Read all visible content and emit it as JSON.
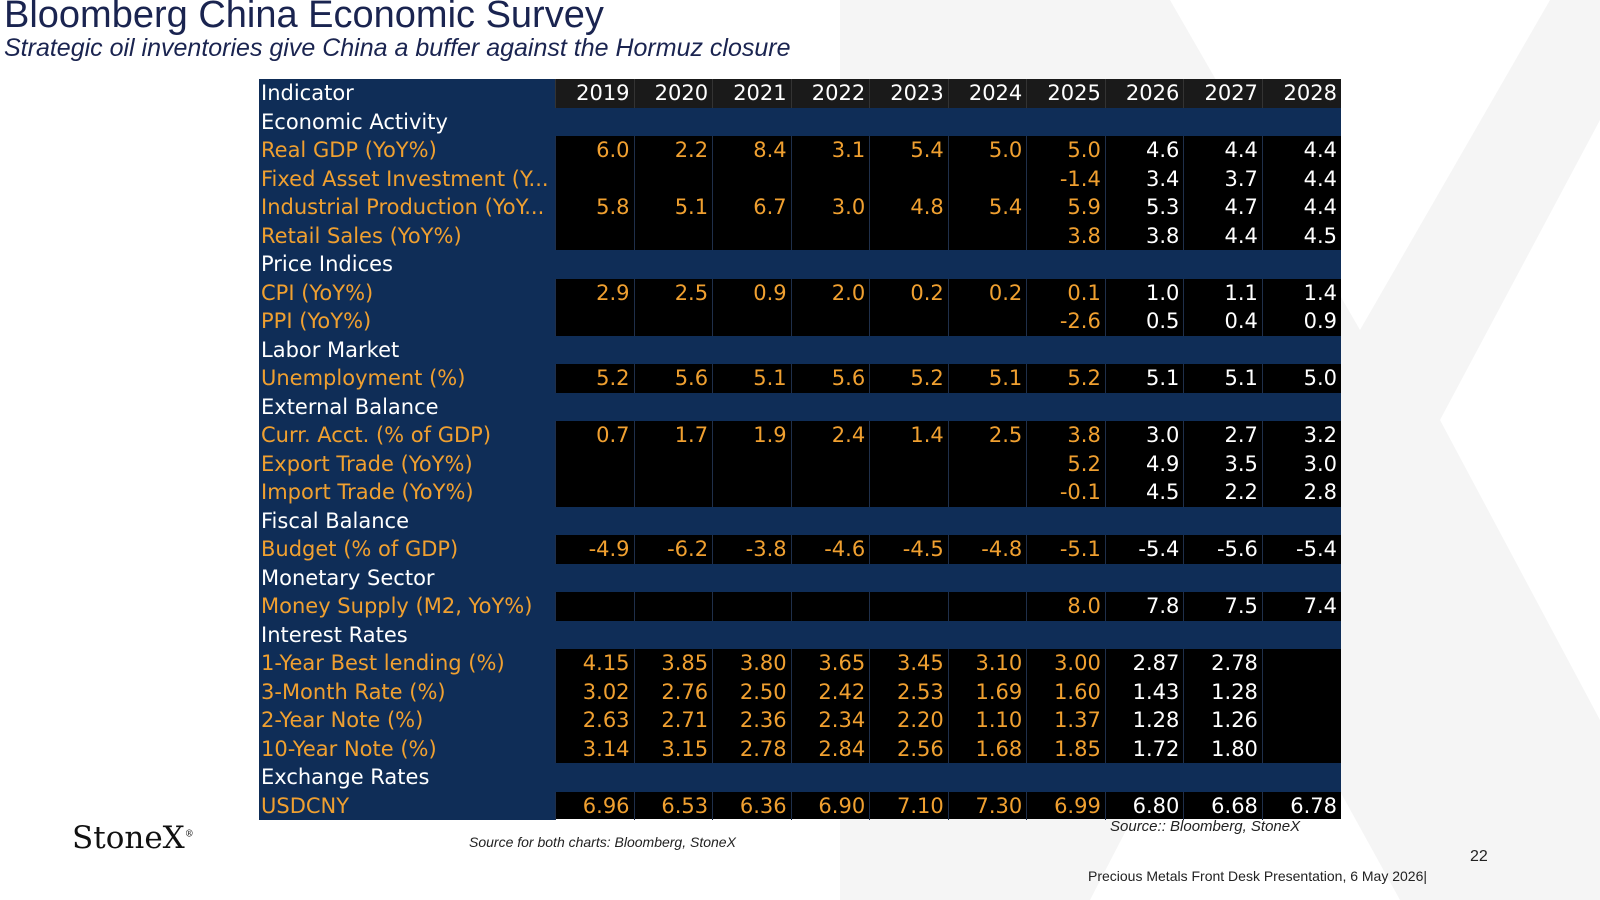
{
  "title": "Bloomberg China Economic Survey",
  "subtitle": "Strategic oil inventories give China a buffer against the Hormuz closure",
  "table": {
    "header_label": "Indicator",
    "years": [
      "2019",
      "2020",
      "2021",
      "2022",
      "2023",
      "2024",
      "2025",
      "2026",
      "2027",
      "2028"
    ],
    "rows": [
      {
        "type": "section",
        "label": "Economic Activity"
      },
      {
        "type": "data",
        "label": "Real GDP (YoY%)",
        "values": [
          "6.0",
          "2.2",
          "8.4",
          "3.1",
          "5.4",
          "5.0",
          "5.0",
          "4.6",
          "4.4",
          "4.4"
        ]
      },
      {
        "type": "data",
        "label": "Fixed Asset Investment (Y...",
        "values": [
          "",
          "",
          "",
          "",
          "",
          "",
          "-1.4",
          "3.4",
          "3.7",
          "4.4"
        ]
      },
      {
        "type": "data",
        "label": "Industrial Production (YoY...",
        "values": [
          "5.8",
          "5.1",
          "6.7",
          "3.0",
          "4.8",
          "5.4",
          "5.9",
          "5.3",
          "4.7",
          "4.4"
        ]
      },
      {
        "type": "data",
        "label": "Retail Sales (YoY%)",
        "values": [
          "",
          "",
          "",
          "",
          "",
          "",
          "3.8",
          "3.8",
          "4.4",
          "4.5"
        ]
      },
      {
        "type": "section",
        "label": "Price Indices"
      },
      {
        "type": "data",
        "label": "CPI (YoY%)",
        "values": [
          "2.9",
          "2.5",
          "0.9",
          "2.0",
          "0.2",
          "0.2",
          "0.1",
          "1.0",
          "1.1",
          "1.4"
        ]
      },
      {
        "type": "data",
        "label": "PPI (YoY%)",
        "values": [
          "",
          "",
          "",
          "",
          "",
          "",
          "-2.6",
          "0.5",
          "0.4",
          "0.9"
        ]
      },
      {
        "type": "section",
        "label": "Labor Market"
      },
      {
        "type": "data",
        "label": "Unemployment (%)",
        "values": [
          "5.2",
          "5.6",
          "5.1",
          "5.6",
          "5.2",
          "5.1",
          "5.2",
          "5.1",
          "5.1",
          "5.0"
        ]
      },
      {
        "type": "section",
        "label": "External Balance"
      },
      {
        "type": "data",
        "label": "Curr. Acct. (% of GDP)",
        "values": [
          "0.7",
          "1.7",
          "1.9",
          "2.4",
          "1.4",
          "2.5",
          "3.8",
          "3.0",
          "2.7",
          "3.2"
        ]
      },
      {
        "type": "data",
        "label": "Export Trade (YoY%)",
        "values": [
          "",
          "",
          "",
          "",
          "",
          "",
          "5.2",
          "4.9",
          "3.5",
          "3.0"
        ]
      },
      {
        "type": "data",
        "label": "Import Trade (YoY%)",
        "values": [
          "",
          "",
          "",
          "",
          "",
          "",
          "-0.1",
          "4.5",
          "2.2",
          "2.8"
        ]
      },
      {
        "type": "section",
        "label": "Fiscal Balance"
      },
      {
        "type": "data",
        "label": "Budget (% of GDP)",
        "values": [
          "-4.9",
          "-6.2",
          "-3.8",
          "-4.6",
          "-4.5",
          "-4.8",
          "-5.1",
          "-5.4",
          "-5.6",
          "-5.4"
        ]
      },
      {
        "type": "section",
        "label": "Monetary Sector"
      },
      {
        "type": "data",
        "label": "Money Supply (M2, YoY%)",
        "values": [
          "",
          "",
          "",
          "",
          "",
          "",
          "8.0",
          "7.8",
          "7.5",
          "7.4"
        ]
      },
      {
        "type": "section",
        "label": "Interest Rates"
      },
      {
        "type": "data",
        "label": "1-Year Best lending (%)",
        "values": [
          "4.15",
          "3.85",
          "3.80",
          "3.65",
          "3.45",
          "3.10",
          "3.00",
          "2.87",
          "2.78",
          ""
        ]
      },
      {
        "type": "data",
        "label": "3-Month Rate (%)",
        "values": [
          "3.02",
          "2.76",
          "2.50",
          "2.42",
          "2.53",
          "1.69",
          "1.60",
          "1.43",
          "1.28",
          ""
        ]
      },
      {
        "type": "data",
        "label": "2-Year Note (%)",
        "values": [
          "2.63",
          "2.71",
          "2.36",
          "2.34",
          "2.20",
          "1.10",
          "1.37",
          "1.28",
          "1.26",
          ""
        ]
      },
      {
        "type": "data",
        "label": "10-Year Note (%)",
        "values": [
          "3.14",
          "3.15",
          "2.78",
          "2.84",
          "2.56",
          "1.68",
          "1.85",
          "1.72",
          "1.80",
          ""
        ]
      },
      {
        "type": "section",
        "label": "Exchange Rates"
      },
      {
        "type": "data",
        "label": "USDCNY",
        "values": [
          "6.96",
          "6.53",
          "6.36",
          "6.90",
          "7.10",
          "7.30",
          "6.99",
          "6.80",
          "6.68",
          "6.78"
        ]
      }
    ]
  },
  "logo": "StoneX",
  "logo_mark": "®",
  "source_left": "Source for both charts: Bloomberg, StoneX",
  "source_right": "Source:: Bloomberg, StoneX",
  "page_number": "22",
  "footer": "Precious Metals Front Desk Presentation, 6 May 2026|",
  "colors": {
    "header_bg": "#0f2d57",
    "label_text": "#f0a030",
    "actual_text": "#f0a030",
    "forecast_text": "#ffffff",
    "title": "#1a2450"
  }
}
